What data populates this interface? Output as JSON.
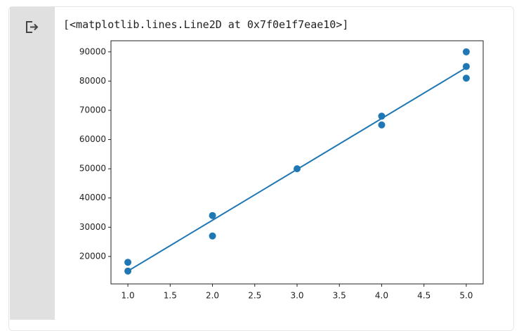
{
  "output": {
    "text": "[<matplotlib.lines.Line2D at 0x7f0e1f7eae10>]"
  },
  "chart_data": {
    "type": "scatter",
    "series": [
      {
        "type": "scatter",
        "color": "#1f77b4",
        "x": [
          1,
          1,
          2,
          2,
          3,
          4,
          4,
          5,
          5,
          5
        ],
        "values": [
          18000,
          15000,
          34000,
          27000,
          50000,
          68000,
          65000,
          90000,
          85000,
          81000
        ]
      },
      {
        "type": "line",
        "color": "#1f77b4",
        "x": [
          1,
          2,
          3,
          4,
          5
        ],
        "values": [
          15000,
          32400,
          49800,
          67200,
          84600
        ]
      }
    ],
    "xlim": [
      0.8,
      5.2
    ],
    "xticks": [
      {
        "value": 1,
        "label": "1.0"
      },
      {
        "value": 1.5,
        "label": "1.5"
      },
      {
        "value": 2,
        "label": "2.0"
      },
      {
        "value": 2.5,
        "label": "2.5"
      },
      {
        "value": 3,
        "label": "3.0"
      },
      {
        "value": 3.5,
        "label": "3.5"
      },
      {
        "value": 4,
        "label": "4.0"
      },
      {
        "value": 4.5,
        "label": "4.5"
      },
      {
        "value": 5,
        "label": "5.0"
      }
    ],
    "ylim": [
      10600,
      93800
    ],
    "yticks": [
      20000,
      30000,
      40000,
      50000,
      60000,
      70000,
      80000,
      90000
    ],
    "grid": false
  }
}
